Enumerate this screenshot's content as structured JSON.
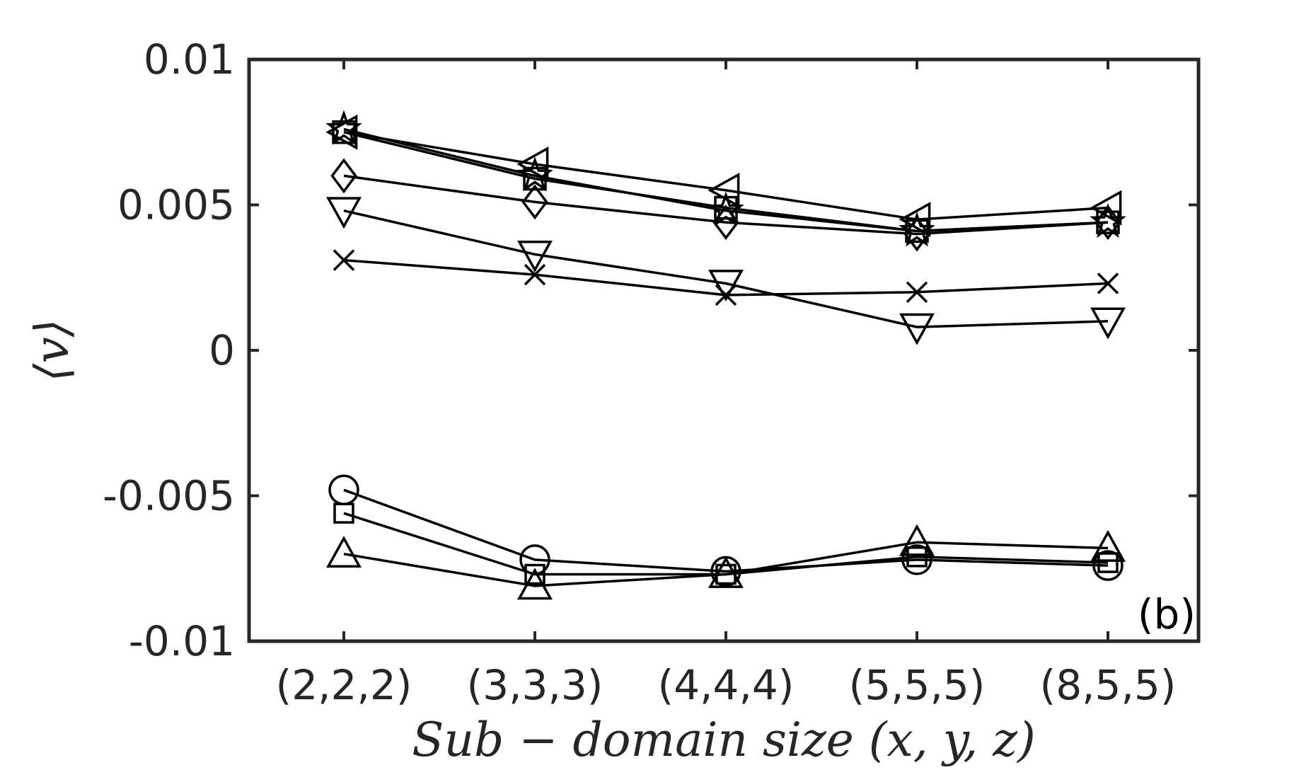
{
  "chart_data": {
    "type": "line",
    "xlabel": "Sub − domain size (x, y, z)",
    "ylabel": "⟨v⟩",
    "panel_label": "(b)",
    "categories": [
      "(2,2,2)",
      "(3,3,3)",
      "(4,4,4)",
      "(5,5,5)",
      "(8,5,5)"
    ],
    "ylim": [
      -0.01,
      0.01
    ],
    "yticks": [
      -0.01,
      -0.005,
      0,
      0.005,
      0.01
    ],
    "ytick_labels": [
      "-0.01",
      "-0.005",
      "0",
      "0.005",
      "0.01"
    ],
    "grid": false,
    "color": "#000000",
    "series": [
      {
        "marker": "triangle-left",
        "values": [
          0.0075,
          0.0064,
          0.0055,
          0.0045,
          0.0049
        ]
      },
      {
        "marker": "star",
        "values": [
          0.0076,
          0.006,
          0.0048,
          0.0041,
          0.0044
        ]
      },
      {
        "marker": "square",
        "values": [
          0.0075,
          0.0059,
          0.0049,
          0.0041,
          0.0044
        ]
      },
      {
        "marker": "diamond",
        "values": [
          0.006,
          0.0051,
          0.0044,
          0.004,
          0.0044
        ]
      },
      {
        "marker": "triangle-down",
        "values": [
          0.0048,
          0.0033,
          0.0023,
          0.0008,
          0.001
        ]
      },
      {
        "marker": "cross",
        "values": [
          0.0031,
          0.0026,
          0.0019,
          0.002,
          0.0023
        ]
      },
      {
        "marker": "circle",
        "values": [
          -0.0048,
          -0.0072,
          -0.0076,
          -0.0072,
          -0.0074
        ]
      },
      {
        "marker": "small-square",
        "values": [
          -0.0056,
          -0.0077,
          -0.0077,
          -0.0071,
          -0.0073
        ]
      },
      {
        "marker": "triangle-up",
        "values": [
          -0.007,
          -0.0081,
          -0.0077,
          -0.0066,
          -0.0068
        ]
      }
    ]
  }
}
